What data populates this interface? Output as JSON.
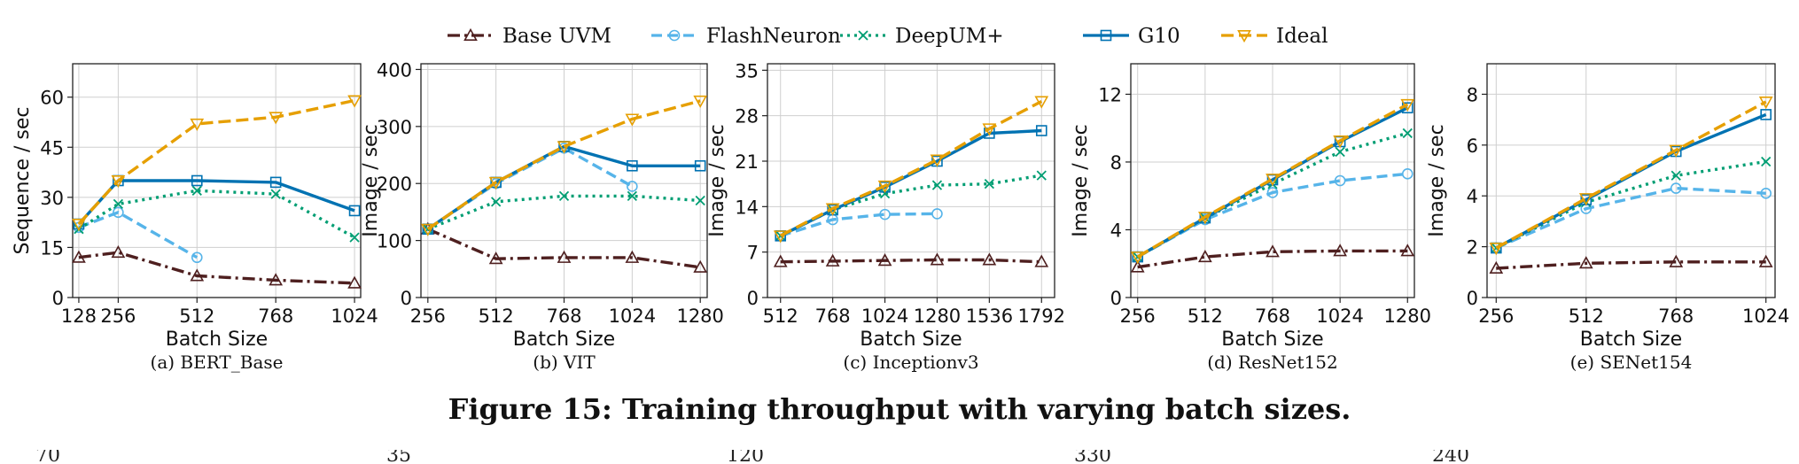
{
  "legend": [
    {
      "key": "base",
      "label": "Base UVM",
      "color": "#4e1f1f",
      "dash": "14,5,3,5",
      "marker": "triangle-up"
    },
    {
      "key": "fn",
      "label": "FlashNeuron",
      "color": "#56b4e9",
      "dash": "12,6",
      "marker": "circle"
    },
    {
      "key": "dum",
      "label": "DeepUM+",
      "color": "#009e73",
      "dash": "3,5",
      "marker": "x"
    },
    {
      "key": "g10",
      "label": "G10",
      "color": "#0072b2",
      "dash": "",
      "marker": "square"
    },
    {
      "key": "ideal",
      "label": "Ideal",
      "color": "#e69f00",
      "dash": "14,6",
      "marker": "triangle-down"
    }
  ],
  "chart_data": [
    {
      "type": "line",
      "caption": "(a) BERT_Base",
      "xlabel": "Batch Size",
      "ylabel": "Sequence / sec",
      "x": [
        128,
        256,
        512,
        768,
        1024
      ],
      "xticks": [
        128,
        256,
        512,
        768,
        1024
      ],
      "xlim": [
        108,
        1044
      ],
      "ylim": [
        0,
        70
      ],
      "yticks": [
        0,
        15,
        30,
        45,
        60
      ],
      "grid": true,
      "series": [
        {
          "name": "Base UVM",
          "values": [
            12,
            13.5,
            6.5,
            5.2,
            4.3
          ]
        },
        {
          "name": "FlashNeuron",
          "values": [
            21,
            25.5,
            12,
            null,
            null
          ]
        },
        {
          "name": "DeepUM+",
          "values": [
            20.5,
            28,
            32,
            31,
            18
          ]
        },
        {
          "name": "G10",
          "values": [
            22,
            35,
            35,
            34.5,
            26
          ]
        },
        {
          "name": "Ideal",
          "values": [
            22,
            35,
            52,
            54,
            59
          ]
        }
      ]
    },
    {
      "type": "line",
      "caption": "(b) VIT",
      "xlabel": "Batch Size",
      "ylabel": "Image / sec",
      "x": [
        256,
        512,
        768,
        1024,
        1280
      ],
      "xticks": [
        256,
        512,
        768,
        1024,
        1280
      ],
      "xlim": [
        230,
        1306
      ],
      "ylim": [
        0,
        410
      ],
      "yticks": [
        0,
        100,
        200,
        300,
        400
      ],
      "grid": true,
      "series": [
        {
          "name": "Base UVM",
          "values": [
            120,
            68,
            70,
            70,
            53
          ]
        },
        {
          "name": "FlashNeuron",
          "values": [
            120,
            200,
            262,
            195,
            null
          ]
        },
        {
          "name": "DeepUM+",
          "values": [
            120,
            168,
            178,
            178,
            170
          ]
        },
        {
          "name": "G10",
          "values": [
            120,
            202,
            265,
            231,
            231
          ]
        },
        {
          "name": "Ideal",
          "values": [
            120,
            202,
            265,
            313,
            345
          ]
        }
      ]
    },
    {
      "type": "line",
      "caption": "(c) Inceptionv3",
      "xlabel": "Batch Size",
      "ylabel": "Image / sec",
      "x": [
        512,
        768,
        1024,
        1280,
        1536,
        1792
      ],
      "xticks": [
        512,
        768,
        1024,
        1280,
        1536,
        1792
      ],
      "xlim": [
        448,
        1856
      ],
      "ylim": [
        0,
        36
      ],
      "yticks": [
        0,
        7,
        14,
        21,
        28,
        35
      ],
      "grid": true,
      "series": [
        {
          "name": "Base UVM",
          "values": [
            5.5,
            5.6,
            5.7,
            5.8,
            5.8,
            5.5
          ]
        },
        {
          "name": "FlashNeuron",
          "values": [
            9.5,
            12,
            12.8,
            12.9,
            null,
            null
          ]
        },
        {
          "name": "DeepUM+",
          "values": [
            9.5,
            13.5,
            16,
            17.3,
            17.5,
            18.8
          ]
        },
        {
          "name": "G10",
          "values": [
            9.5,
            13.5,
            17,
            21,
            25.3,
            25.7
          ]
        },
        {
          "name": "Ideal",
          "values": [
            9.5,
            13.7,
            17.2,
            21.2,
            26,
            30.2
          ]
        }
      ]
    },
    {
      "type": "line",
      "caption": "(d) ResNet152",
      "xlabel": "Batch Size",
      "ylabel": "Image / sec",
      "x": [
        256,
        512,
        768,
        1024,
        1280
      ],
      "xticks": [
        256,
        512,
        768,
        1024,
        1280
      ],
      "xlim": [
        230,
        1306
      ],
      "ylim": [
        0,
        13.8
      ],
      "yticks": [
        0,
        4,
        8,
        12
      ],
      "grid": true,
      "series": [
        {
          "name": "Base UVM",
          "values": [
            1.8,
            2.4,
            2.7,
            2.75,
            2.75
          ]
        },
        {
          "name": "FlashNeuron",
          "values": [
            2.4,
            4.6,
            6.2,
            6.9,
            7.3
          ]
        },
        {
          "name": "DeepUM+",
          "values": [
            2.4,
            4.7,
            6.7,
            8.6,
            9.7
          ]
        },
        {
          "name": "G10",
          "values": [
            2.4,
            4.7,
            6.95,
            9.2,
            11.2
          ]
        },
        {
          "name": "Ideal",
          "values": [
            2.4,
            4.75,
            7.0,
            9.25,
            11.4
          ]
        }
      ]
    },
    {
      "type": "line",
      "caption": "(e) SENet154",
      "xlabel": "Batch Size",
      "ylabel": "Image / sec",
      "x": [
        256,
        512,
        768,
        1024
      ],
      "xticks": [
        256,
        512,
        768,
        1024
      ],
      "xlim": [
        230,
        1050
      ],
      "ylim": [
        0,
        9.2
      ],
      "yticks": [
        0,
        2,
        4,
        6,
        8
      ],
      "grid": true,
      "series": [
        {
          "name": "Base UVM",
          "values": [
            1.15,
            1.35,
            1.4,
            1.4
          ]
        },
        {
          "name": "FlashNeuron",
          "values": [
            1.95,
            3.5,
            4.3,
            4.1
          ]
        },
        {
          "name": "DeepUM+",
          "values": [
            1.95,
            3.75,
            4.8,
            5.35
          ]
        },
        {
          "name": "G10",
          "values": [
            1.95,
            3.85,
            5.75,
            7.2
          ]
        },
        {
          "name": "Ideal",
          "values": [
            1.95,
            3.9,
            5.8,
            7.7
          ]
        }
      ]
    }
  ],
  "figure_caption": "Figure 15: Training throughput with varying batch sizes.",
  "next_figure_ticks": [
    "70",
    "35",
    "120",
    "330",
    "240"
  ]
}
